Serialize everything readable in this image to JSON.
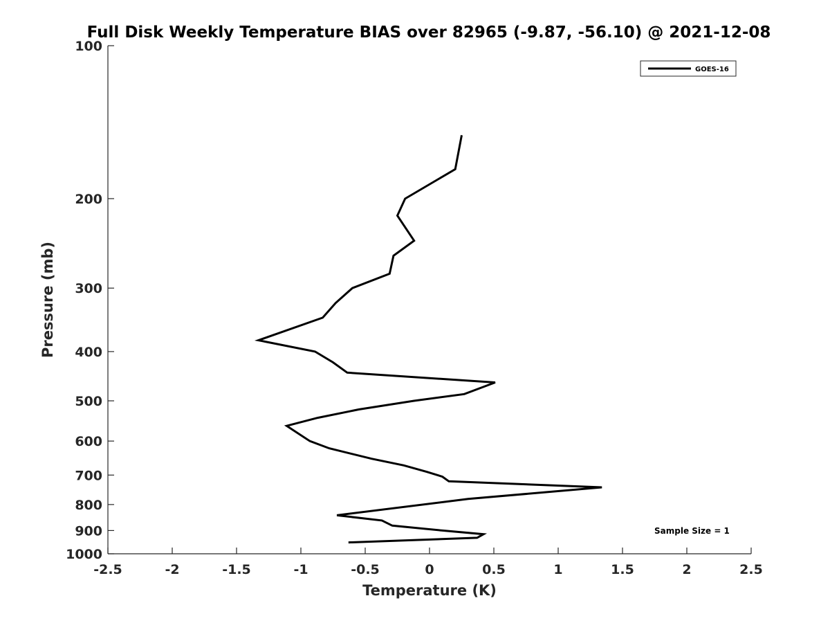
{
  "chart_data": {
    "type": "line",
    "title": "Full Disk Weekly Temperature BIAS over 82965 (-9.87, -56.10) @ 2021-12-08",
    "xlabel": "Temperature (K)",
    "ylabel": "Pressure (mb)",
    "xlim": [
      -2.5,
      2.5
    ],
    "ylim": [
      100,
      1000
    ],
    "y_scale": "log",
    "y_reversed": true,
    "grid": false,
    "legend_position": "top-right",
    "x_ticks": [
      "-2.5",
      "-2",
      "-1.5",
      "-1",
      "-0.5",
      "0",
      "0.5",
      "1",
      "1.5",
      "2",
      "2.5"
    ],
    "y_ticks": [
      "100",
      "200",
      "300",
      "400",
      "500",
      "600",
      "700",
      "800",
      "900",
      "1000"
    ],
    "annotation": "Sample Size = 1",
    "series": [
      {
        "name": "GOES-16",
        "color": "#000000",
        "x": [
          0.25,
          0.2,
          -0.19,
          -0.25,
          -0.12,
          -0.28,
          -0.31,
          -0.6,
          -0.73,
          -0.83,
          -1.33,
          -0.89,
          -0.75,
          -0.64,
          0.51,
          0.27,
          -0.12,
          -0.55,
          -0.87,
          -1.11,
          -0.93,
          -0.78,
          -0.45,
          -0.2,
          -0.02,
          0.1,
          0.15,
          1.34,
          0.3,
          -0.72,
          -0.37,
          -0.29,
          0.1,
          0.42,
          0.37,
          -0.63
        ],
        "y": [
          150,
          175,
          200,
          216,
          242,
          259,
          281,
          300,
          321,
          343,
          380,
          400,
          420,
          440,
          460,
          485,
          500,
          520,
          540,
          560,
          600,
          620,
          650,
          670,
          690,
          705,
          720,
          740,
          780,
          840,
          860,
          880,
          900,
          915,
          930,
          950
        ]
      }
    ]
  }
}
